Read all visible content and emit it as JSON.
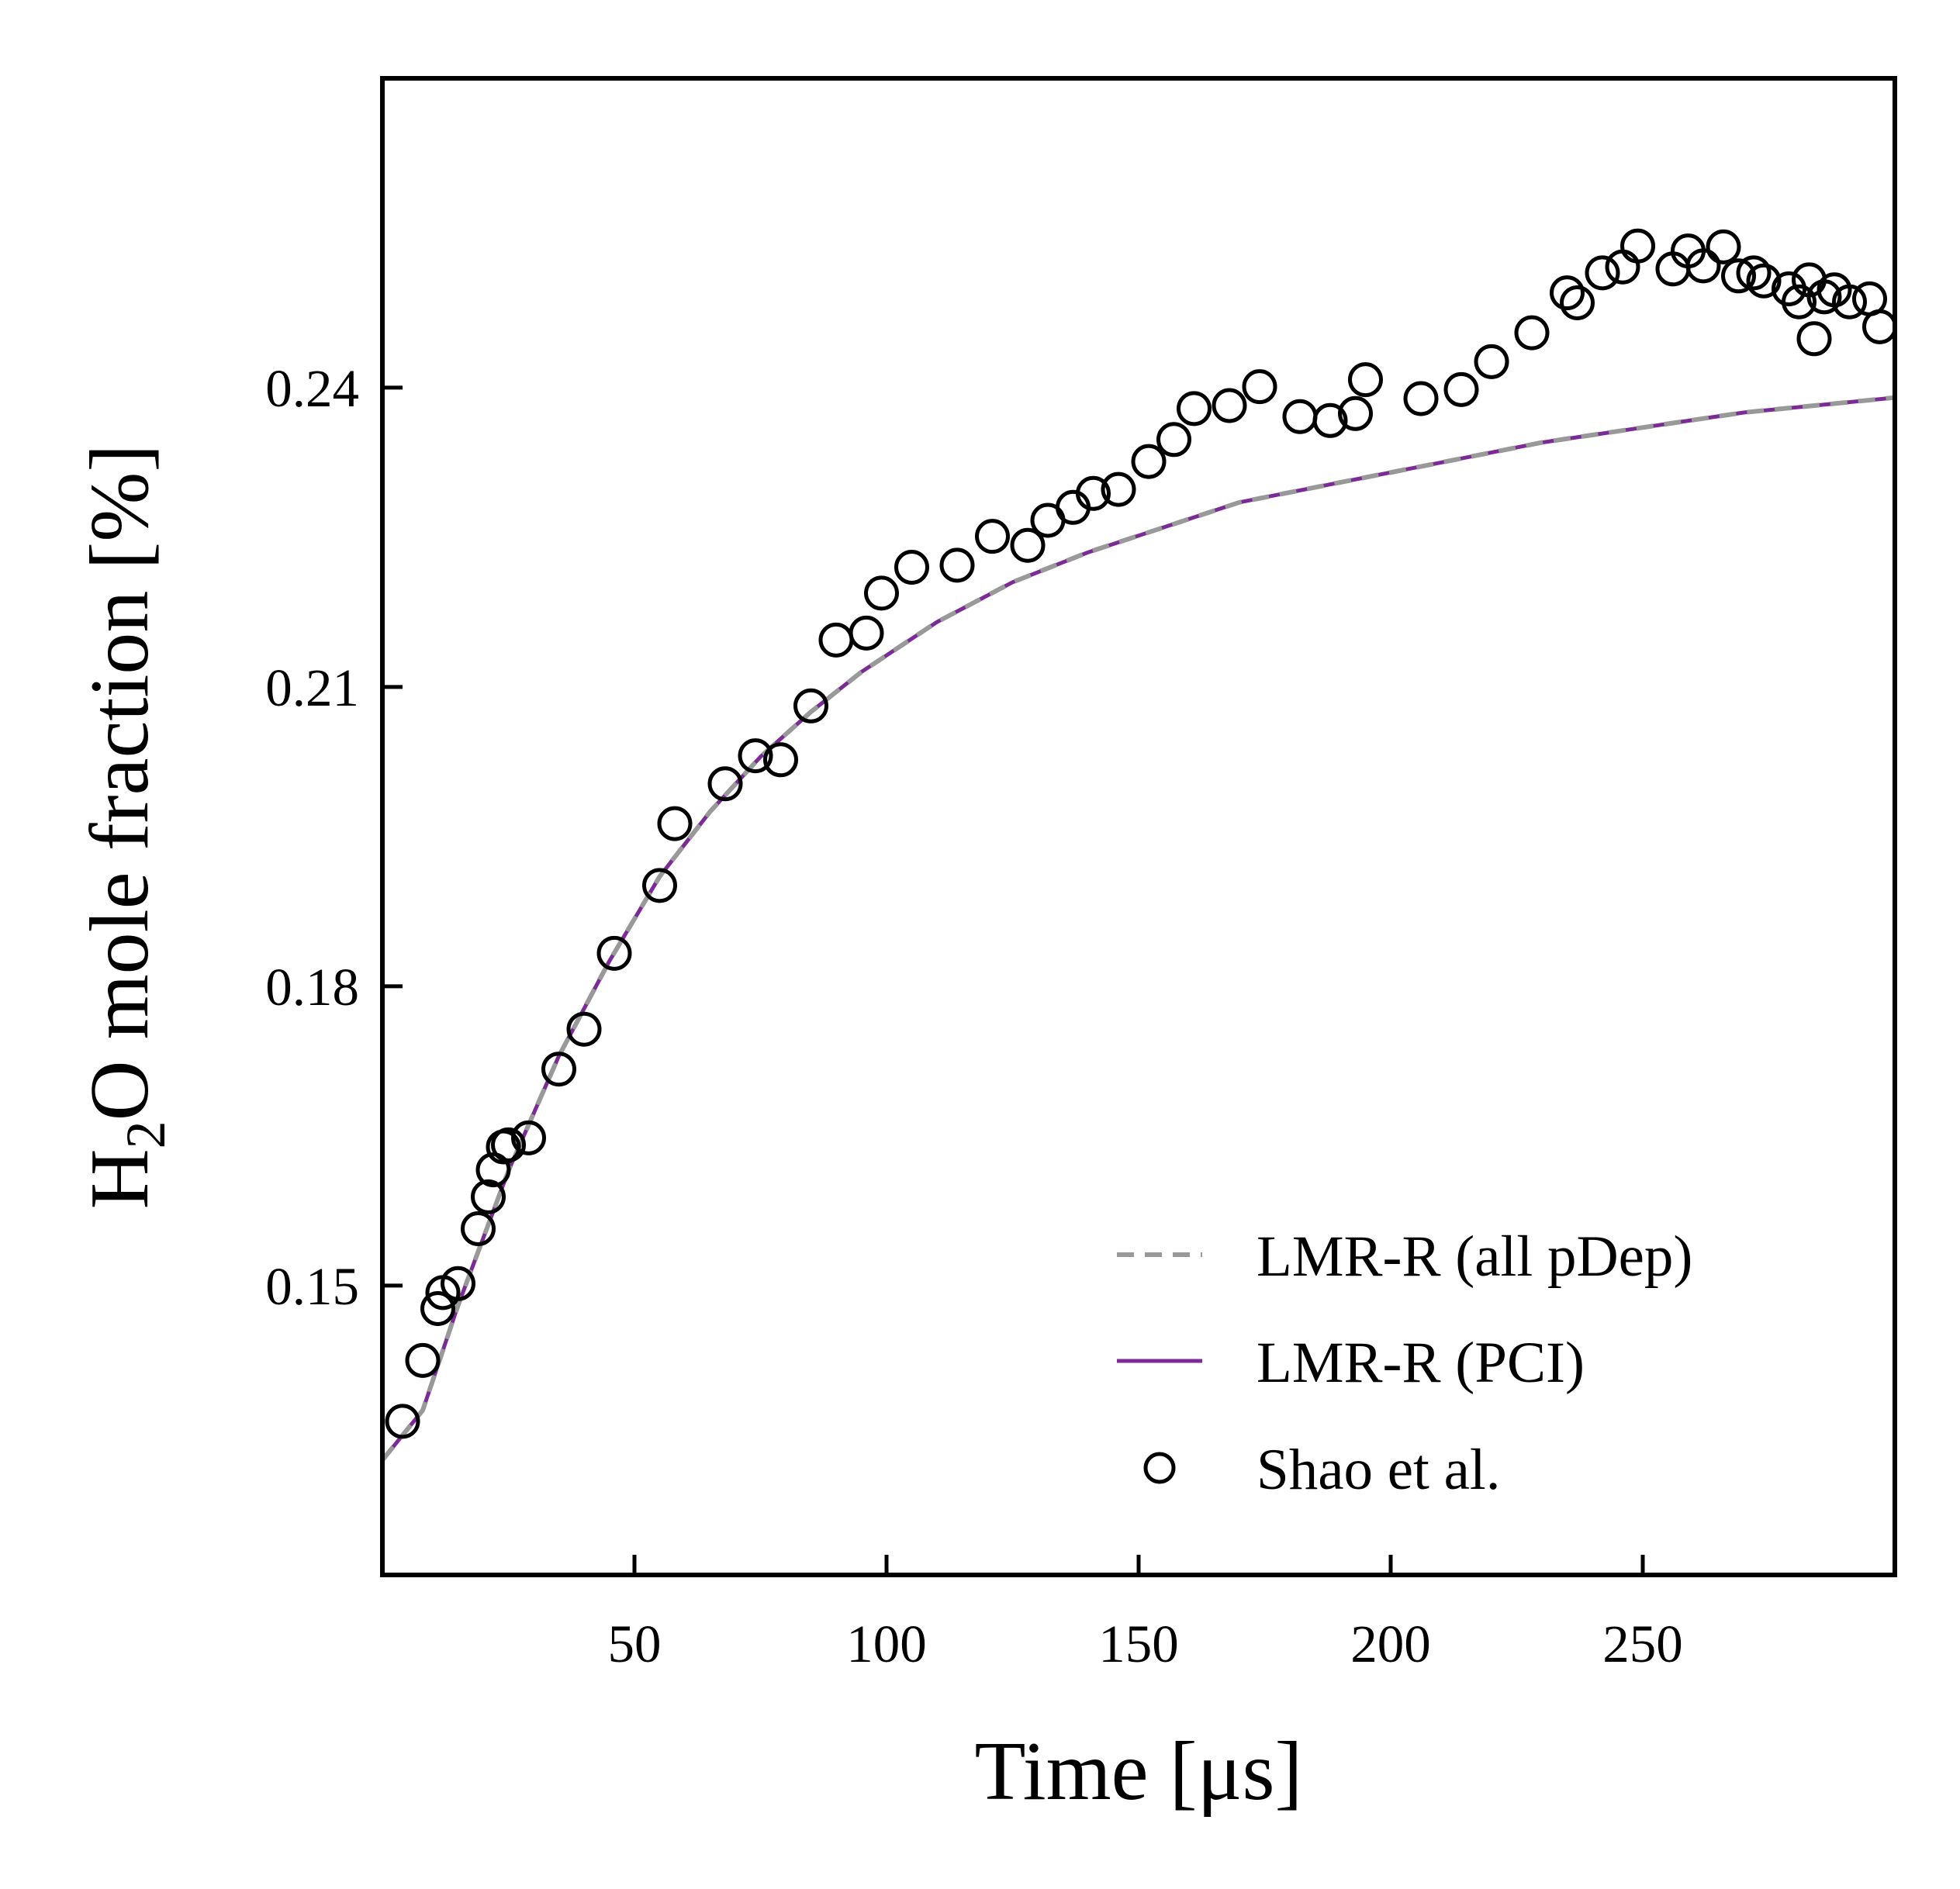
{
  "chart_data": {
    "type": "line",
    "title": "",
    "xlabel": "Time [μs]",
    "ylabel_parts": {
      "before": "H",
      "subscript": "2",
      "after": "O mole fraction [%]"
    },
    "xlim": [
      0,
      300
    ],
    "ylim": [
      0.121,
      0.271
    ],
    "xticks": [
      50,
      100,
      150,
      200,
      250
    ],
    "xtick_labels": [
      "50",
      "100",
      "150",
      "200",
      "250"
    ],
    "yticks": [
      0.15,
      0.18,
      0.21,
      0.24
    ],
    "ytick_labels": [
      "0.15",
      "0.18",
      "0.21",
      "0.24"
    ],
    "grid": false,
    "legend_position": "lower right",
    "series": [
      {
        "name": "LMR-R (all pDep)",
        "style": "dashed",
        "color": "#999999",
        "x": [
          0,
          8,
          15,
          25,
          35,
          45,
          55,
          65,
          75,
          85,
          95,
          110,
          125,
          140,
          155,
          170,
          190,
          210,
          230,
          250,
          270,
          290,
          300
        ],
        "y": [
          0.1325,
          0.1375,
          0.148,
          0.1615,
          0.173,
          0.1825,
          0.191,
          0.1975,
          0.203,
          0.2075,
          0.2115,
          0.2165,
          0.2205,
          0.2235,
          0.226,
          0.2285,
          0.2305,
          0.2325,
          0.2345,
          0.236,
          0.2375,
          0.2385,
          0.239
        ]
      },
      {
        "name": "LMR-R (PCI)",
        "style": "solid",
        "color": "#7b2a96",
        "x": [
          0,
          8,
          15,
          25,
          35,
          45,
          55,
          65,
          75,
          85,
          95,
          110,
          125,
          140,
          155,
          170,
          190,
          210,
          230,
          250,
          270,
          290,
          300
        ],
        "y": [
          0.1325,
          0.1375,
          0.148,
          0.1615,
          0.173,
          0.1825,
          0.191,
          0.1975,
          0.203,
          0.2075,
          0.2115,
          0.2165,
          0.2205,
          0.2235,
          0.226,
          0.2285,
          0.2305,
          0.2325,
          0.2345,
          0.236,
          0.2375,
          0.2385,
          0.239
        ]
      },
      {
        "name": "Shao et al.",
        "style": "markers",
        "color": "#000000",
        "x": [
          4,
          8,
          11,
          12,
          15,
          19,
          21,
          22,
          24,
          25,
          29,
          35,
          40,
          46,
          55,
          58,
          68,
          74,
          79,
          85,
          90,
          96,
          99,
          105,
          114,
          121,
          128,
          132,
          137,
          141,
          146,
          152,
          157,
          161,
          168,
          174,
          182,
          188,
          193,
          195,
          206,
          214,
          220,
          228,
          235,
          237,
          242,
          246,
          249,
          256,
          259,
          262,
          266,
          269,
          272,
          274,
          279,
          281,
          283,
          284,
          286,
          288,
          291,
          295,
          297
        ],
        "y": [
          0.1364,
          0.1425,
          0.1477,
          0.1493,
          0.1502,
          0.1557,
          0.1589,
          0.1616,
          0.1639,
          0.1641,
          0.1648,
          0.1717,
          0.1757,
          0.1833,
          0.1901,
          0.1963,
          0.2003,
          0.2031,
          0.2027,
          0.2081,
          0.2147,
          0.2154,
          0.2194,
          0.222,
          0.2222,
          0.2251,
          0.2242,
          0.2267,
          0.228,
          0.2294,
          0.2298,
          0.2326,
          0.2348,
          0.2379,
          0.2382,
          0.2401,
          0.2371,
          0.2367,
          0.2374,
          0.2408,
          0.2389,
          0.2398,
          0.2426,
          0.2455,
          0.2495,
          0.2485,
          0.2515,
          0.2521,
          0.2542,
          0.2519,
          0.2537,
          0.2522,
          0.2541,
          0.2512,
          0.2515,
          0.2507,
          0.2499,
          0.2486,
          0.2508,
          0.2449,
          0.2491,
          0.2498,
          0.2486,
          0.2489,
          0.2461
        ]
      }
    ]
  }
}
